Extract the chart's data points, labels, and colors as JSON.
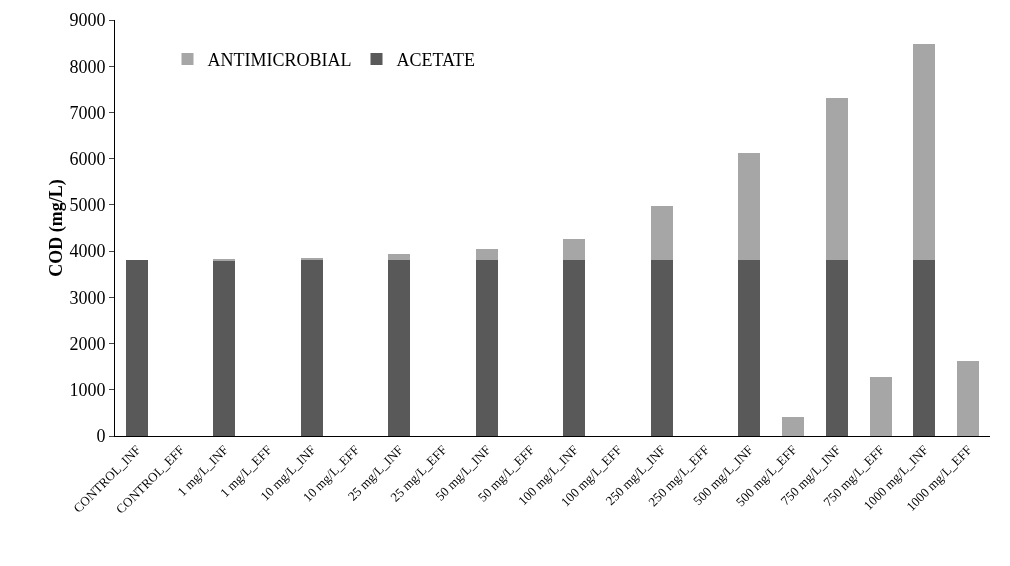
{
  "chart_data": {
    "type": "bar",
    "stacked": true,
    "ylabel": "COD (mg/L)",
    "categories": [
      "CONTROL_INF",
      "CONTROL_EFF",
      "1 mg/L_INF",
      "1 mg/L_EFF",
      "10 mg/L_INF",
      "10 mg/L_EFF",
      "25 mg/L_INF",
      "25 mg/L_EFF",
      "50 mg/L_INF",
      "50 mg/L_EFF",
      "100 mg/L_INF",
      "100 mg/L_EFF",
      "250 mg/L_INF",
      "250 mg/L_EFF",
      "500 mg/L_INF",
      "500 mg/L_EFF",
      "750 mg/L_INF",
      "750 mg/L_EFF",
      "1000 mg/L_INF",
      "1000 mg/L_EFF"
    ],
    "series": [
      {
        "name": "ACETATE",
        "color": "#595959",
        "values": [
          3800,
          0,
          3800,
          0,
          3800,
          0,
          3800,
          0,
          3800,
          0,
          3800,
          0,
          3800,
          0,
          3800,
          0,
          3800,
          0,
          3800,
          0
        ]
      },
      {
        "name": "ANTIMICROBIAL",
        "color": "#a6a6a6",
        "values": [
          0,
          0,
          10,
          0,
          50,
          0,
          130,
          0,
          240,
          0,
          460,
          0,
          1170,
          0,
          2330,
          420,
          3520,
          1280,
          4680,
          1630
        ]
      }
    ],
    "ylim": [
      0,
      9000
    ],
    "yticks": [
      0,
      1000,
      2000,
      3000,
      4000,
      5000,
      6000,
      7000,
      8000,
      9000
    ],
    "grid": false,
    "legend": "top left"
  }
}
